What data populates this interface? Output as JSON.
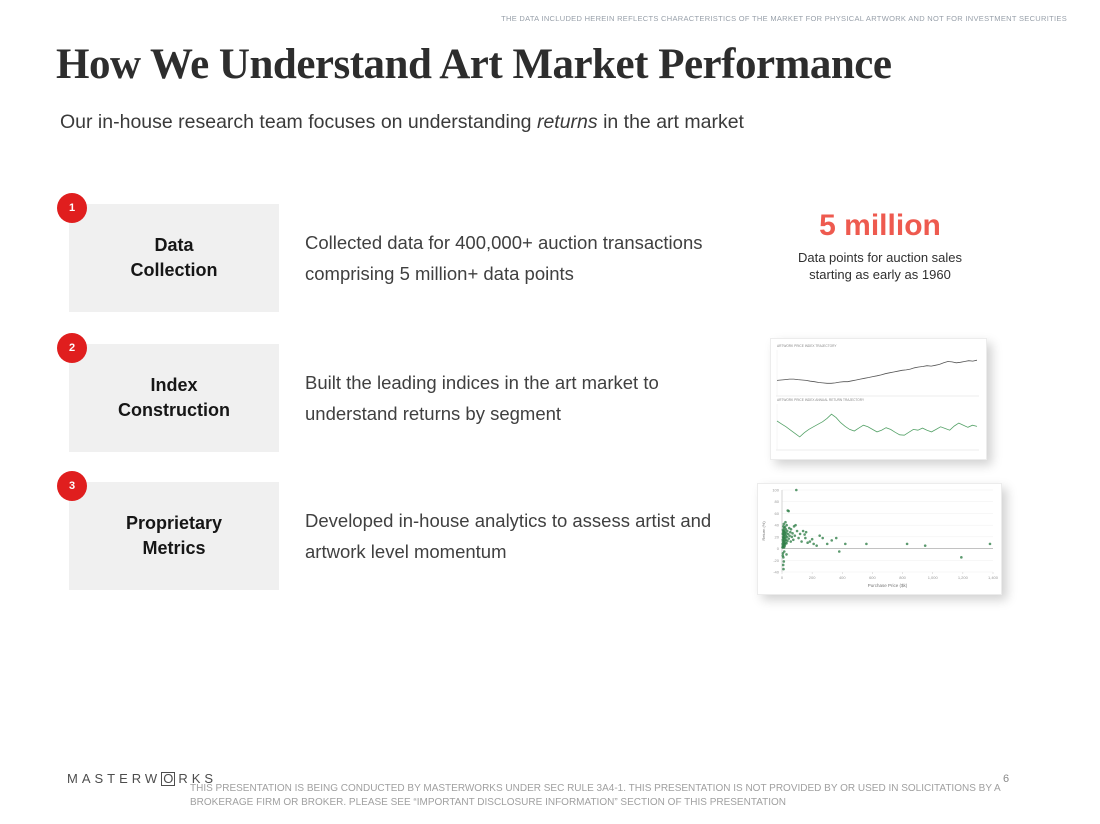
{
  "top_disclaimer": "THE DATA INCLUDED HEREIN REFLECTS CHARACTERISTICS OF THE MARKET FOR PHYSICAL ARTWORK AND NOT FOR INVESTMENT SECURITIES",
  "header": {
    "title": "How We Understand Art Market Performance",
    "subtitle_before": "Our in-house research team focuses on understanding ",
    "subtitle_italic": "returns",
    "subtitle_after": " in the art market"
  },
  "rows": [
    {
      "number": "1",
      "label_line1": "Data",
      "label_line2": "Collection",
      "description": "Collected data for 400,000+ auction transactions comprising 5 million+ data points"
    },
    {
      "number": "2",
      "label_line1": "Index",
      "label_line2": "Construction",
      "description": "Built the leading indices in the art market to understand returns by segment"
    },
    {
      "number": "3",
      "label_line1": "Proprietary",
      "label_line2": "Metrics",
      "description": "Developed in-house analytics to assess artist and artwork level momentum"
    }
  ],
  "stat": {
    "value": "5 million",
    "caption_line1": "Data points for auction sales",
    "caption_line2": "starting as early as 1960"
  },
  "footer": {
    "logo_prefix": "MASTERW",
    "logo_o": "O",
    "logo_suffix": "RKS",
    "disclaimer": "THIS PRESENTATION  IS BEING CONDUCTED BY MASTERWORKS UNDER SEC RULE 3A4-1. THIS PRESENTATION  IS NOT PROVIDED BY OR USED IN SOLICITATIONS BY A BROKERAGE FIRM OR BROKER. PLEASE SEE “IMPORTANT DISCLOSURE INFORMATION” SECTION OF THIS PRESENTATION",
    "page_number": "6"
  },
  "colors": {
    "badge_red": "#e01e1e",
    "stat_coral": "#ee5a4f",
    "box_gray": "#f0f0f0",
    "line_dark": "#555555",
    "line_green": "#55a268",
    "scatter_green": "#2e7d46"
  },
  "chart_data": [
    {
      "type": "line",
      "panels": [
        {
          "micro_title": "ARTWORK PRICE INDEX TRAJECTORY",
          "color": "#555555",
          "ylim": [
            0,
            100
          ],
          "values": [
            30,
            31,
            32,
            33,
            33,
            32,
            31,
            30,
            28,
            27,
            25,
            24,
            23,
            23,
            24,
            26,
            27,
            27,
            29,
            31,
            33,
            35,
            37,
            39,
            41,
            43,
            46,
            48,
            50,
            52,
            54,
            55,
            57,
            60,
            62,
            63,
            65,
            64,
            66,
            68,
            72,
            75,
            74,
            72,
            73,
            75,
            77,
            76,
            78
          ]
        },
        {
          "micro_title": "ARTWORK PRICE INDEX ANNUAL RETURN TRAJECTORY",
          "color": "#55a268",
          "ylim": [
            0,
            100
          ],
          "values": [
            62,
            55,
            48,
            40,
            32,
            24,
            34,
            42,
            48,
            54,
            60,
            68,
            78,
            70,
            58,
            49,
            42,
            38,
            45,
            52,
            48,
            42,
            36,
            40,
            46,
            42,
            35,
            29,
            28,
            35,
            42,
            40,
            45,
            40,
            36,
            42,
            48,
            44,
            40,
            50,
            57,
            52,
            47,
            52,
            49
          ]
        }
      ]
    },
    {
      "type": "scatter",
      "xlabel": "Purchase Price ($k)",
      "ylabel": "Return (%)",
      "xlim": [
        0,
        1400
      ],
      "xtick_step": 200,
      "ylim": [
        -40,
        100
      ],
      "ytick_step": 20,
      "point_color": "#2e7d46",
      "points": [
        [
          3,
          2
        ],
        [
          4,
          8
        ],
        [
          5,
          15
        ],
        [
          5,
          25
        ],
        [
          6,
          5
        ],
        [
          6,
          32
        ],
        [
          7,
          12
        ],
        [
          7,
          20
        ],
        [
          8,
          28
        ],
        [
          8,
          3
        ],
        [
          9,
          18
        ],
        [
          9,
          38
        ],
        [
          10,
          10
        ],
        [
          10,
          24
        ],
        [
          11,
          30
        ],
        [
          11,
          6
        ],
        [
          12,
          16
        ],
        [
          12,
          42
        ],
        [
          13,
          22
        ],
        [
          13,
          2
        ],
        [
          14,
          35
        ],
        [
          14,
          12
        ],
        [
          15,
          27
        ],
        [
          15,
          8
        ],
        [
          16,
          19
        ],
        [
          17,
          31
        ],
        [
          17,
          4
        ],
        [
          18,
          24
        ],
        [
          19,
          14
        ],
        [
          20,
          37
        ],
        [
          20,
          7
        ],
        [
          21,
          28
        ],
        [
          22,
          18
        ],
        [
          23,
          45
        ],
        [
          23,
          10
        ],
        [
          25,
          22
        ],
        [
          26,
          33
        ],
        [
          27,
          15
        ],
        [
          28,
          26
        ],
        [
          30,
          9
        ],
        [
          31,
          40
        ],
        [
          33,
          20
        ],
        [
          35,
          30
        ],
        [
          36,
          13
        ],
        [
          38,
          65
        ],
        [
          40,
          25
        ],
        [
          44,
          64
        ],
        [
          45,
          17
        ],
        [
          48,
          35
        ],
        [
          50,
          22
        ],
        [
          55,
          28
        ],
        [
          58,
          12
        ],
        [
          60,
          33
        ],
        [
          65,
          20
        ],
        [
          70,
          26
        ],
        [
          75,
          15
        ],
        [
          80,
          38
        ],
        [
          85,
          22
        ],
        [
          90,
          40
        ],
        [
          95,
          100
        ],
        [
          100,
          30
        ],
        [
          110,
          18
        ],
        [
          120,
          25
        ],
        [
          130,
          12
        ],
        [
          140,
          30
        ],
        [
          150,
          24
        ],
        [
          155,
          18
        ],
        [
          160,
          28
        ],
        [
          170,
          10
        ],
        [
          185,
          12
        ],
        [
          200,
          16
        ],
        [
          210,
          8
        ],
        [
          230,
          5
        ],
        [
          250,
          22
        ],
        [
          270,
          18
        ],
        [
          300,
          8
        ],
        [
          330,
          14
        ],
        [
          360,
          18
        ],
        [
          380,
          -5
        ],
        [
          420,
          8
        ],
        [
          560,
          8
        ],
        [
          830,
          8
        ],
        [
          950,
          5
        ],
        [
          1190,
          -15
        ],
        [
          1380,
          8
        ],
        [
          6,
          -8
        ],
        [
          9,
          -15
        ],
        [
          12,
          -22
        ],
        [
          8,
          -28
        ],
        [
          15,
          -5
        ],
        [
          5,
          -12
        ],
        [
          30,
          -10
        ],
        [
          10,
          -35
        ]
      ]
    }
  ]
}
